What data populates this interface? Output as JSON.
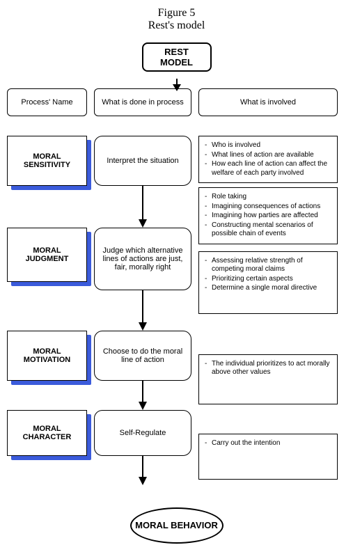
{
  "figure_title_1": "Figure 5",
  "figure_title_2": "Rest's model",
  "top_box": "REST MODEL",
  "headers": {
    "left": "Process' Name",
    "mid": "What is done in process",
    "right": "What is involved"
  },
  "rows": [
    {
      "name": "MORAL SENSITIVITY",
      "mid": "Interpret the situation",
      "mid_h": 72,
      "right": [
        [
          "Who is involved",
          "What lines of action are available",
          "How each line of action can affect the welfare of each party involved"
        ],
        [
          "Role taking",
          "Imagining consequences of actions",
          "Imagining how parties are affected",
          "Constructing mental scenarios of possible chain of events"
        ]
      ],
      "arrow_h": 60,
      "left_h": 72
    },
    {
      "name": "MORAL JUDGMENT",
      "mid": "Judge which alternative lines of actions are just, fair, morally right",
      "mid_h": 90,
      "right": [
        [
          "Assessing relative strength of competing moral claims",
          "Prioritizing certain aspects",
          "Determine a single moral directive"
        ]
      ],
      "arrow_h": 58,
      "left_h": 78
    },
    {
      "name": "MORAL MOTIVATION",
      "mid": "Choose to do the moral line of action",
      "mid_h": 72,
      "right": [
        [
          "The individual prioritizes to act morally above other values"
        ]
      ],
      "arrow_h": 42,
      "left_h": 72
    },
    {
      "name": "MORAL CHARACTER",
      "mid": "Self-Regulate",
      "mid_h": 66,
      "right": [
        [
          "Carry out the intention"
        ]
      ],
      "arrow_h": 42,
      "left_h": 66
    }
  ],
  "final": "MORAL BEHAVIOR",
  "colors": {
    "shadow": "#3b5bdb",
    "border": "#000000",
    "bg": "#ffffff",
    "text": "#000000"
  }
}
